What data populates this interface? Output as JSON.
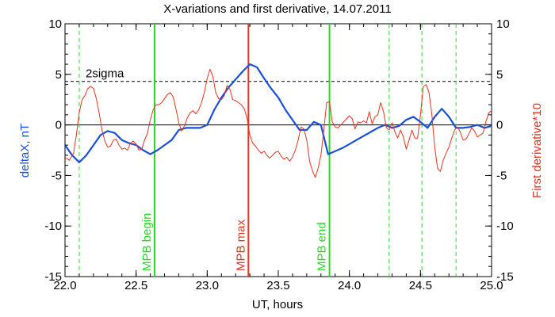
{
  "chart_data": {
    "type": "line",
    "title": "X-variations and first derivative, 14.07.2011",
    "xlabel": "UT, hours",
    "ylabel_left": "deltaX, nT",
    "ylabel_right": "First derivative*10",
    "xlim": [
      22.0,
      25.0
    ],
    "ylim_left": [
      -15,
      10
    ],
    "ylim_right": [
      -15,
      10
    ],
    "x_ticks": [
      22.0,
      22.5,
      23.0,
      23.5,
      24.0,
      24.5,
      25.0
    ],
    "x_tick_labels": [
      "22.0",
      "22.5",
      "23.0",
      "23.5",
      "24.0",
      "24.5",
      "25.0"
    ],
    "y_ticks": [
      10,
      5,
      0,
      -5,
      -10,
      -15
    ],
    "y_tick_labels": [
      "10",
      "5",
      "0",
      "-5",
      "-10",
      "-15"
    ],
    "grid": false,
    "series": [
      {
        "name": "deltaX, nT",
        "axis": "left",
        "color": "#1a4fd8",
        "x": [
          22.0,
          22.05,
          22.1,
          22.15,
          22.2,
          22.25,
          22.3,
          22.35,
          22.4,
          22.45,
          22.5,
          22.55,
          22.6,
          22.65,
          22.7,
          22.75,
          22.8,
          22.85,
          22.9,
          22.95,
          23.0,
          23.05,
          23.1,
          23.15,
          23.2,
          23.25,
          23.3,
          23.35,
          23.4,
          23.45,
          23.5,
          23.55,
          23.6,
          23.65,
          23.7,
          23.75,
          23.8,
          23.85,
          23.9,
          23.95,
          24.0,
          24.05,
          24.1,
          24.15,
          24.2,
          24.25,
          24.3,
          24.35,
          24.4,
          24.45,
          24.5,
          24.55,
          24.6,
          24.65,
          24.7,
          24.75,
          24.8,
          24.85,
          24.9,
          24.95,
          25.0
        ],
        "values": [
          -2.0,
          -3.0,
          -3.7,
          -3.0,
          -2.0,
          -1.0,
          -0.6,
          -0.8,
          -1.5,
          -1.8,
          -2.0,
          -2.5,
          -2.9,
          -2.5,
          -2.0,
          -1.5,
          -0.5,
          -0.3,
          -0.3,
          -0.3,
          0.0,
          1.5,
          2.7,
          3.7,
          4.5,
          5.3,
          6.0,
          5.7,
          4.6,
          3.6,
          2.7,
          1.5,
          0.5,
          -0.5,
          -0.5,
          0.3,
          0.0,
          -2.9,
          -2.6,
          -2.3,
          -1.9,
          -1.5,
          -1.1,
          -0.7,
          -0.3,
          0.0,
          -0.3,
          -0.1,
          0.5,
          0.8,
          0.3,
          -0.3,
          0.8,
          1.6,
          0.8,
          -0.3,
          -0.3,
          -0.2,
          0.0,
          -0.3,
          -0.1
        ]
      },
      {
        "name": "First derivative*10",
        "axis": "right",
        "color": "#e8321e",
        "x": [
          22.0,
          22.03,
          22.06,
          22.08,
          22.1,
          22.12,
          22.14,
          22.16,
          22.18,
          22.2,
          22.22,
          22.24,
          22.26,
          22.28,
          22.3,
          22.32,
          22.34,
          22.36,
          22.38,
          22.4,
          22.42,
          22.44,
          22.46,
          22.48,
          22.5,
          22.52,
          22.54,
          22.56,
          22.58,
          22.6,
          22.62,
          22.64,
          22.66,
          22.68,
          22.7,
          22.72,
          22.74,
          22.76,
          22.78,
          22.8,
          22.82,
          22.84,
          22.86,
          22.88,
          22.9,
          22.92,
          22.94,
          22.96,
          22.98,
          23.0,
          23.02,
          23.04,
          23.06,
          23.08,
          23.1,
          23.12,
          23.14,
          23.16,
          23.18,
          23.2,
          23.22,
          23.24,
          23.26,
          23.28,
          23.3,
          23.32,
          23.34,
          23.36,
          23.38,
          23.4,
          23.42,
          23.44,
          23.46,
          23.48,
          23.5,
          23.52,
          23.54,
          23.56,
          23.58,
          23.6,
          23.62,
          23.64,
          23.66,
          23.68,
          23.7,
          23.72,
          23.74,
          23.76,
          23.78,
          23.8,
          23.82,
          23.84,
          23.86,
          23.88,
          23.9,
          23.92,
          23.94,
          23.96,
          23.98,
          24.0,
          24.02,
          24.04,
          24.06,
          24.08,
          24.1,
          24.12,
          24.14,
          24.16,
          24.18,
          24.2,
          24.22,
          24.24,
          24.26,
          24.28,
          24.3,
          24.32,
          24.34,
          24.36,
          24.38,
          24.4,
          24.42,
          24.44,
          24.46,
          24.48,
          24.5,
          24.52,
          24.54,
          24.56,
          24.58,
          24.6,
          24.62,
          24.64,
          24.66,
          24.68,
          24.7,
          24.72,
          24.74,
          24.76,
          24.78,
          24.8,
          24.82,
          24.84,
          24.86,
          24.88,
          24.9,
          24.92,
          24.94,
          24.96,
          24.98,
          25.0
        ],
        "values": [
          -3.2,
          -3.5,
          -2.8,
          -1.0,
          1.2,
          2.5,
          2.9,
          3.6,
          3.8,
          3.6,
          2.6,
          1.2,
          -0.5,
          -1.6,
          -2.2,
          -2.1,
          -1.5,
          -1.4,
          -2.0,
          -2.4,
          -2.3,
          -2.5,
          -1.8,
          -1.6,
          -1.9,
          -2.5,
          -2.4,
          -1.5,
          -0.8,
          0.5,
          1.5,
          2.0,
          2.0,
          2.2,
          2.6,
          3.0,
          3.2,
          2.8,
          1.6,
          0.2,
          -0.6,
          -0.1,
          0.7,
          1.2,
          1.4,
          1.1,
          1.5,
          2.2,
          3.2,
          4.6,
          5.5,
          4.8,
          3.2,
          2.6,
          2.5,
          2.9,
          3.9,
          3.5,
          2.5,
          2.4,
          2.2,
          2.0,
          1.6,
          0.7,
          -1.0,
          -1.8,
          -2.1,
          -2.5,
          -2.8,
          -2.6,
          -3.0,
          -3.3,
          -3.0,
          -2.7,
          -2.6,
          -3.1,
          -3.4,
          -3.2,
          -3.6,
          -3.2,
          -2.5,
          -1.5,
          -0.2,
          -0.4,
          -1.5,
          -3.6,
          -4.5,
          -5.2,
          -4.3,
          -3.0,
          -0.5,
          2.2,
          2.3,
          0.3,
          -0.2,
          -0.3,
          0.0,
          0.3,
          0.6,
          0.9,
          0.6,
          -0.4,
          0.3,
          0.2,
          0.4,
          0.2,
          1.3,
          0.1,
          0.8,
          1.0,
          2.2,
          1.3,
          -0.3,
          -0.5,
          0.2,
          -0.7,
          -1.3,
          -0.5,
          -1.2,
          -2.4,
          -1.5,
          -0.5,
          -1.3,
          -1.3,
          1.0,
          3.8,
          4.0,
          3.2,
          1.0,
          -2.2,
          -4.3,
          -4.6,
          -3.5,
          -2.8,
          -2.2,
          -1.3,
          -0.5,
          -0.2,
          -0.7,
          -1.5,
          -1.4,
          -0.9,
          -0.3,
          -0.6,
          -1.2,
          -1.0,
          -0.8,
          0.3,
          1.2,
          1.4
        ]
      }
    ],
    "reference_lines": [
      {
        "name": "zero",
        "axis": "left",
        "value": 0,
        "color": "#000000",
        "style": "solid"
      },
      {
        "name": "2sigma",
        "label": "2sigma",
        "axis": "left",
        "value": 4.3,
        "color": "#000000",
        "style": "dashed"
      }
    ],
    "vertical_lines": [
      {
        "name": "mpb-begin",
        "label": "MPB begin",
        "x": 22.63,
        "color": "#22dd22",
        "style": "solid"
      },
      {
        "name": "mpb-max",
        "label": "MPB max",
        "x": 23.29,
        "color": "#e8321e",
        "style": "solid"
      },
      {
        "name": "mpb-end",
        "label": "MPB end",
        "x": 23.86,
        "color": "#22dd22",
        "style": "solid"
      },
      {
        "name": "aux-1",
        "label": "",
        "x": 22.1,
        "color": "#22dd22",
        "style": "dashed"
      },
      {
        "name": "aux-2",
        "label": "",
        "x": 24.28,
        "color": "#22dd22",
        "style": "dashed"
      },
      {
        "name": "aux-3",
        "label": "",
        "x": 24.51,
        "color": "#22dd22",
        "style": "dashed"
      },
      {
        "name": "aux-4",
        "label": "",
        "x": 24.75,
        "color": "#22dd22",
        "style": "dashed"
      }
    ]
  }
}
